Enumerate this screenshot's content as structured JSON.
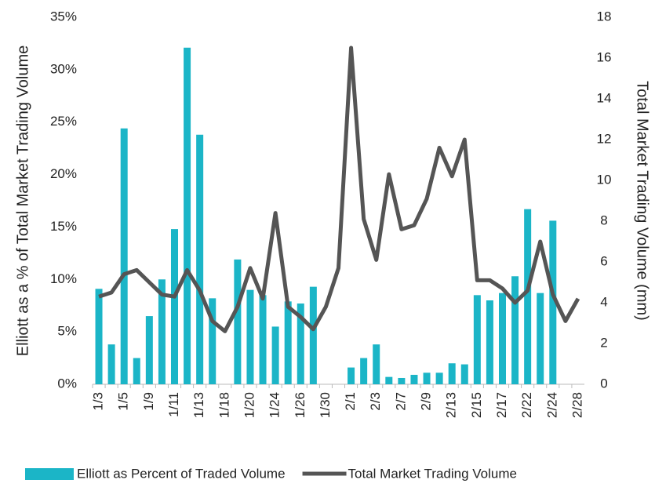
{
  "chart_data": {
    "type": "bar_line",
    "y_label": "Elliott as a % of Total Market Trading Volume",
    "y2_label": "Total Market Trading Volume (mm)",
    "categories": [
      "1/3",
      null,
      "1/5",
      null,
      "1/9",
      null,
      "1/11",
      null,
      "1/13",
      null,
      "1/18",
      null,
      "1/20",
      null,
      "1/24",
      null,
      "1/26",
      null,
      "1/30",
      null,
      "2/1",
      null,
      "2/3",
      null,
      "2/7",
      null,
      "2/9",
      null,
      "2/13",
      null,
      "2/15",
      null,
      "2/17",
      null,
      "2/22",
      null,
      "2/24",
      null,
      "2/28"
    ],
    "series": [
      {
        "name": "Elliott as Percent of Traded Volume",
        "type": "bar",
        "color": "#1bb5c7",
        "axis": "y",
        "values": [
          9.1,
          3.8,
          24.4,
          2.5,
          6.5,
          10.0,
          14.8,
          32.1,
          23.8,
          8.2,
          null,
          11.9,
          9.0,
          8.5,
          5.5,
          7.9,
          7.7,
          9.3,
          null,
          null,
          1.6,
          2.5,
          3.8,
          0.7,
          0.6,
          0.9,
          1.1,
          1.1,
          2.0,
          1.9,
          8.5,
          8.0,
          8.7,
          10.3,
          16.7,
          8.7,
          15.6,
          null,
          null
        ]
      },
      {
        "name": "Total Market Trading Volume",
        "type": "line",
        "color": "#555555",
        "axis": "y2",
        "values": [
          4.3,
          4.5,
          5.4,
          5.6,
          5.0,
          4.4,
          4.3,
          5.6,
          4.6,
          3.1,
          2.6,
          3.8,
          5.7,
          4.2,
          8.4,
          3.8,
          3.3,
          2.7,
          3.8,
          5.7,
          16.5,
          8.1,
          6.1,
          10.3,
          7.6,
          7.8,
          9.1,
          11.6,
          10.2,
          12.0,
          5.1,
          5.1,
          4.7,
          4.0,
          4.6,
          7.0,
          4.4,
          3.1,
          4.2
        ]
      }
    ],
    "ylim": [
      0,
      35
    ],
    "yticks": [
      {
        "value": 0,
        "label": "0%"
      },
      {
        "value": 5,
        "label": "5%"
      },
      {
        "value": 10,
        "label": "10%"
      },
      {
        "value": 15,
        "label": "15%"
      },
      {
        "value": 20,
        "label": "20%"
      },
      {
        "value": 25,
        "label": "25%"
      },
      {
        "value": 30,
        "label": "30%"
      },
      {
        "value": 35,
        "label": "35%"
      }
    ],
    "y2lim": [
      0,
      18
    ],
    "y2ticks": [
      0,
      2,
      4,
      6,
      8,
      10,
      12,
      14,
      16,
      18
    ],
    "legend": "bottom"
  }
}
